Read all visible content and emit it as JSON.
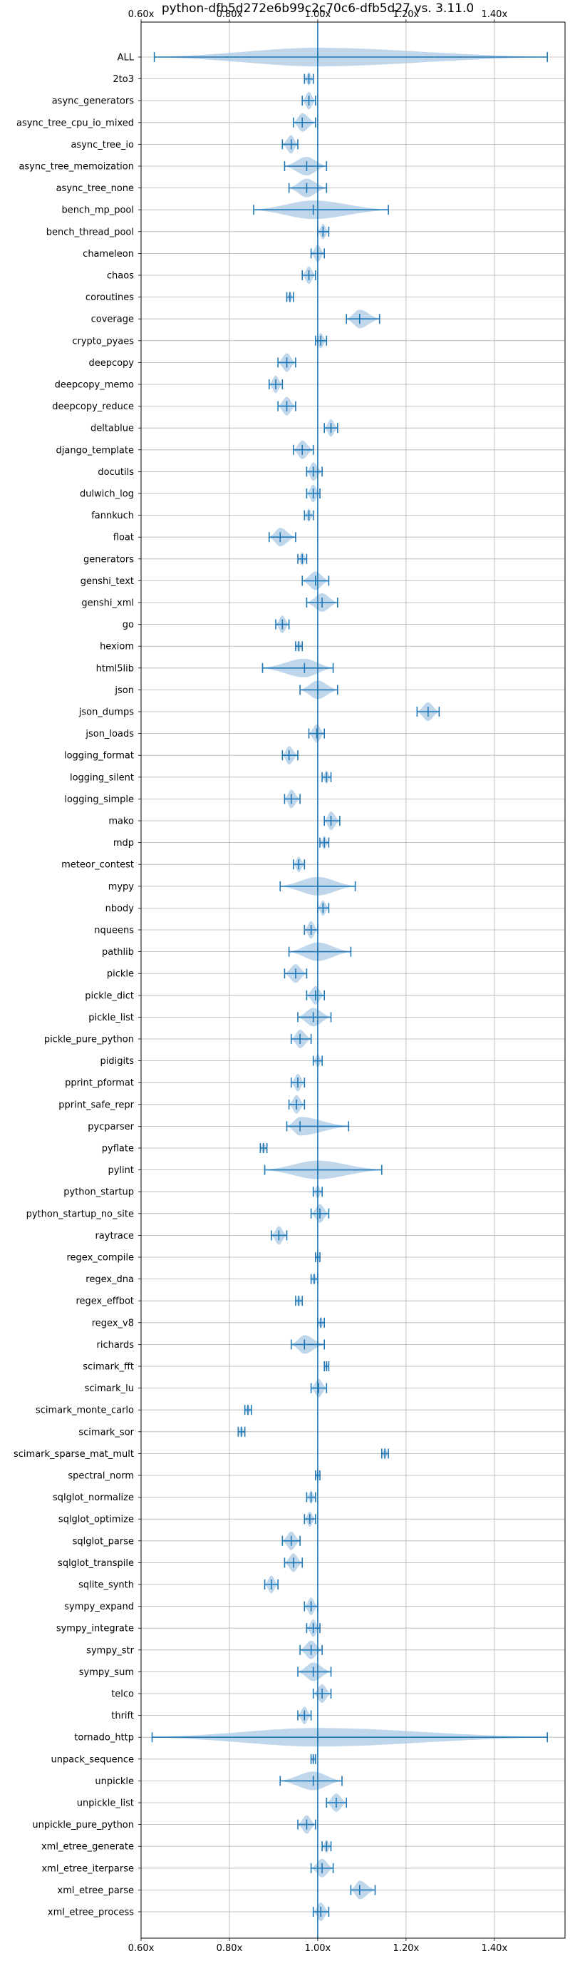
{
  "chart_data": {
    "type": "violin",
    "title": "python-dfb5d272e6b99c2c70c6-dfb5d27 vs. 3.11.0",
    "orientation": "horizontal",
    "xlim": [
      0.6,
      1.56
    ],
    "xticks": [
      {
        "value": 0.6,
        "label": "0.60x"
      },
      {
        "value": 0.8,
        "label": "0.80x"
      },
      {
        "value": 1.0,
        "label": "1.00x"
      },
      {
        "value": 1.2,
        "label": "1.20x"
      },
      {
        "value": 1.4,
        "label": "1.40x"
      }
    ],
    "xtick_labels_top_and_bottom": true,
    "reference_line": 1.0,
    "grid": true,
    "color": "#1f77b4",
    "fill_color": "#aac8e4",
    "categories": [
      {
        "name": "ALL",
        "min": 0.63,
        "max": 1.52,
        "center": 1.0,
        "width": 0.025
      },
      {
        "name": "2to3",
        "min": 0.97,
        "max": 0.99,
        "center": 0.98,
        "width": 0.012
      },
      {
        "name": "async_generators",
        "min": 0.965,
        "max": 0.995,
        "center": 0.98,
        "width": 0.02
      },
      {
        "name": "async_tree_cpu_io_mixed",
        "min": 0.945,
        "max": 0.995,
        "center": 0.965,
        "width": 0.025
      },
      {
        "name": "async_tree_io",
        "min": 0.92,
        "max": 0.955,
        "center": 0.94,
        "width": 0.02
      },
      {
        "name": "async_tree_memoization",
        "min": 0.925,
        "max": 1.02,
        "center": 0.975,
        "width": 0.04
      },
      {
        "name": "async_tree_none",
        "min": 0.935,
        "max": 1.02,
        "center": 0.975,
        "width": 0.04
      },
      {
        "name": "bench_mp_pool",
        "min": 0.855,
        "max": 1.16,
        "center": 0.99,
        "width": 0.16
      },
      {
        "name": "bench_thread_pool",
        "min": 1.0,
        "max": 1.025,
        "center": 1.012,
        "width": 0.015
      },
      {
        "name": "chameleon",
        "min": 0.985,
        "max": 1.015,
        "center": 1.0,
        "width": 0.015
      },
      {
        "name": "chaos",
        "min": 0.965,
        "max": 0.995,
        "center": 0.98,
        "width": 0.02
      },
      {
        "name": "coroutines",
        "min": 0.93,
        "max": 0.945,
        "center": 0.937,
        "width": 0.01
      },
      {
        "name": "coverage",
        "min": 1.065,
        "max": 1.14,
        "center": 1.095,
        "width": 0.035
      },
      {
        "name": "crypto_pyaes",
        "min": 0.995,
        "max": 1.02,
        "center": 1.007,
        "width": 0.015
      },
      {
        "name": "deepcopy",
        "min": 0.91,
        "max": 0.95,
        "center": 0.93,
        "width": 0.025
      },
      {
        "name": "deepcopy_memo",
        "min": 0.89,
        "max": 0.92,
        "center": 0.905,
        "width": 0.02
      },
      {
        "name": "deepcopy_reduce",
        "min": 0.91,
        "max": 0.95,
        "center": 0.93,
        "width": 0.025
      },
      {
        "name": "deltablue",
        "min": 1.015,
        "max": 1.045,
        "center": 1.03,
        "width": 0.02
      },
      {
        "name": "django_template",
        "min": 0.945,
        "max": 0.99,
        "center": 0.965,
        "width": 0.025
      },
      {
        "name": "docutils",
        "min": 0.975,
        "max": 1.01,
        "center": 0.99,
        "width": 0.02
      },
      {
        "name": "dulwich_log",
        "min": 0.975,
        "max": 1.005,
        "center": 0.99,
        "width": 0.02
      },
      {
        "name": "fannkuch",
        "min": 0.97,
        "max": 0.99,
        "center": 0.98,
        "width": 0.012
      },
      {
        "name": "float",
        "min": 0.89,
        "max": 0.95,
        "center": 0.915,
        "width": 0.035
      },
      {
        "name": "generators",
        "min": 0.955,
        "max": 0.975,
        "center": 0.965,
        "width": 0.012
      },
      {
        "name": "genshi_text",
        "min": 0.965,
        "max": 1.025,
        "center": 0.995,
        "width": 0.03
      },
      {
        "name": "genshi_xml",
        "min": 0.975,
        "max": 1.045,
        "center": 1.01,
        "width": 0.03
      },
      {
        "name": "go",
        "min": 0.905,
        "max": 0.935,
        "center": 0.92,
        "width": 0.02
      },
      {
        "name": "hexiom",
        "min": 0.95,
        "max": 0.965,
        "center": 0.957,
        "width": 0.012
      },
      {
        "name": "html5lib",
        "min": 0.875,
        "max": 1.035,
        "center": 0.97,
        "width": 0.045
      },
      {
        "name": "json",
        "min": 0.96,
        "max": 1.045,
        "center": 1.0,
        "width": 0.04
      },
      {
        "name": "json_dumps",
        "min": 1.225,
        "max": 1.275,
        "center": 1.25,
        "width": 0.025
      },
      {
        "name": "json_loads",
        "min": 0.98,
        "max": 1.015,
        "center": 0.998,
        "width": 0.02
      },
      {
        "name": "logging_format",
        "min": 0.92,
        "max": 0.955,
        "center": 0.935,
        "width": 0.02
      },
      {
        "name": "logging_silent",
        "min": 1.01,
        "max": 1.03,
        "center": 1.02,
        "width": 0.012
      },
      {
        "name": "logging_simple",
        "min": 0.925,
        "max": 0.96,
        "center": 0.94,
        "width": 0.025
      },
      {
        "name": "mako",
        "min": 1.015,
        "max": 1.05,
        "center": 1.03,
        "width": 0.02
      },
      {
        "name": "mdp",
        "min": 1.005,
        "max": 1.025,
        "center": 1.015,
        "width": 0.012
      },
      {
        "name": "meteor_contest",
        "min": 0.945,
        "max": 0.97,
        "center": 0.957,
        "width": 0.012
      },
      {
        "name": "mypy",
        "min": 0.915,
        "max": 1.085,
        "center": 1.0,
        "width": 0.05
      },
      {
        "name": "nbody",
        "min": 1.0,
        "max": 1.025,
        "center": 1.012,
        "width": 0.012
      },
      {
        "name": "nqueens",
        "min": 0.97,
        "max": 1.0,
        "center": 0.985,
        "width": 0.02
      },
      {
        "name": "pathlib",
        "min": 0.935,
        "max": 1.075,
        "center": 1.0,
        "width": 0.045
      },
      {
        "name": "pickle",
        "min": 0.925,
        "max": 0.975,
        "center": 0.95,
        "width": 0.025
      },
      {
        "name": "pickle_dict",
        "min": 0.975,
        "max": 1.015,
        "center": 0.995,
        "width": 0.025
      },
      {
        "name": "pickle_list",
        "min": 0.955,
        "max": 1.03,
        "center": 0.99,
        "width": 0.03
      },
      {
        "name": "pickle_pure_python",
        "min": 0.94,
        "max": 0.985,
        "center": 0.96,
        "width": 0.025
      },
      {
        "name": "pidigits",
        "min": 0.99,
        "max": 1.01,
        "center": 1.0,
        "width": 0.012
      },
      {
        "name": "pprint_pformat",
        "min": 0.94,
        "max": 0.97,
        "center": 0.955,
        "width": 0.02
      },
      {
        "name": "pprint_safe_repr",
        "min": 0.935,
        "max": 0.97,
        "center": 0.952,
        "width": 0.025
      },
      {
        "name": "pycparser",
        "min": 0.93,
        "max": 1.07,
        "center": 0.96,
        "width": 0.035
      },
      {
        "name": "pyflate",
        "min": 0.87,
        "max": 0.885,
        "center": 0.877,
        "width": 0.01
      },
      {
        "name": "pylint",
        "min": 0.88,
        "max": 1.145,
        "center": 1.0,
        "width": 0.12
      },
      {
        "name": "python_startup",
        "min": 0.99,
        "max": 1.01,
        "center": 1.0,
        "width": 0.012
      },
      {
        "name": "python_startup_no_site",
        "min": 0.985,
        "max": 1.025,
        "center": 1.005,
        "width": 0.015
      },
      {
        "name": "raytrace",
        "min": 0.895,
        "max": 0.93,
        "center": 0.912,
        "width": 0.02
      },
      {
        "name": "regex_compile",
        "min": 0.995,
        "max": 1.005,
        "center": 1.0,
        "width": 0.008
      },
      {
        "name": "regex_dna",
        "min": 0.985,
        "max": 1.0,
        "center": 0.992,
        "width": 0.01
      },
      {
        "name": "regex_effbot",
        "min": 0.95,
        "max": 0.965,
        "center": 0.957,
        "width": 0.01
      },
      {
        "name": "regex_v8",
        "min": 1.0,
        "max": 1.015,
        "center": 1.007,
        "width": 0.008
      },
      {
        "name": "richards",
        "min": 0.94,
        "max": 1.015,
        "center": 0.97,
        "width": 0.035
      },
      {
        "name": "scimark_fft",
        "min": 1.015,
        "max": 1.025,
        "center": 1.02,
        "width": 0.006
      },
      {
        "name": "scimark_lu",
        "min": 0.985,
        "max": 1.02,
        "center": 1.002,
        "width": 0.02
      },
      {
        "name": "scimark_monte_carlo",
        "min": 0.835,
        "max": 0.85,
        "center": 0.842,
        "width": 0.01
      },
      {
        "name": "scimark_sor",
        "min": 0.82,
        "max": 0.835,
        "center": 0.827,
        "width": 0.008
      },
      {
        "name": "scimark_sparse_mat_mult",
        "min": 1.145,
        "max": 1.16,
        "center": 1.152,
        "width": 0.008
      },
      {
        "name": "spectral_norm",
        "min": 0.995,
        "max": 1.005,
        "center": 1.0,
        "width": 0.008
      },
      {
        "name": "sqlglot_normalize",
        "min": 0.975,
        "max": 0.995,
        "center": 0.985,
        "width": 0.015
      },
      {
        "name": "sqlglot_optimize",
        "min": 0.97,
        "max": 0.995,
        "center": 0.982,
        "width": 0.015
      },
      {
        "name": "sqlglot_parse",
        "min": 0.92,
        "max": 0.96,
        "center": 0.94,
        "width": 0.025
      },
      {
        "name": "sqlglot_transpile",
        "min": 0.925,
        "max": 0.965,
        "center": 0.945,
        "width": 0.025
      },
      {
        "name": "sqlite_synth",
        "min": 0.88,
        "max": 0.91,
        "center": 0.895,
        "width": 0.02
      },
      {
        "name": "sympy_expand",
        "min": 0.97,
        "max": 1.0,
        "center": 0.985,
        "width": 0.02
      },
      {
        "name": "sympy_integrate",
        "min": 0.975,
        "max": 1.005,
        "center": 0.99,
        "width": 0.02
      },
      {
        "name": "sympy_str",
        "min": 0.96,
        "max": 1.01,
        "center": 0.985,
        "width": 0.025
      },
      {
        "name": "sympy_sum",
        "min": 0.955,
        "max": 1.03,
        "center": 0.99,
        "width": 0.03
      },
      {
        "name": "telco",
        "min": 0.99,
        "max": 1.03,
        "center": 1.01,
        "width": 0.02
      },
      {
        "name": "thrift",
        "min": 0.955,
        "max": 0.985,
        "center": 0.97,
        "width": 0.02
      },
      {
        "name": "tornado_http",
        "min": 0.625,
        "max": 1.52,
        "center": 1.0,
        "width": 0.22
      },
      {
        "name": "unpack_sequence",
        "min": 0.985,
        "max": 0.995,
        "center": 0.99,
        "width": 0.008
      },
      {
        "name": "unpickle",
        "min": 0.915,
        "max": 1.055,
        "center": 0.99,
        "width": 0.04
      },
      {
        "name": "unpickle_list",
        "min": 1.02,
        "max": 1.065,
        "center": 1.042,
        "width": 0.025
      },
      {
        "name": "unpickle_pure_python",
        "min": 0.955,
        "max": 0.995,
        "center": 0.975,
        "width": 0.025
      },
      {
        "name": "xml_etree_generate",
        "min": 1.01,
        "max": 1.03,
        "center": 1.02,
        "width": 0.015
      },
      {
        "name": "xml_etree_iterparse",
        "min": 0.985,
        "max": 1.035,
        "center": 1.01,
        "width": 0.03
      },
      {
        "name": "xml_etree_parse",
        "min": 1.075,
        "max": 1.13,
        "center": 1.095,
        "width": 0.025
      },
      {
        "name": "xml_etree_process",
        "min": 0.99,
        "max": 1.025,
        "center": 1.007,
        "width": 0.02
      }
    ]
  }
}
